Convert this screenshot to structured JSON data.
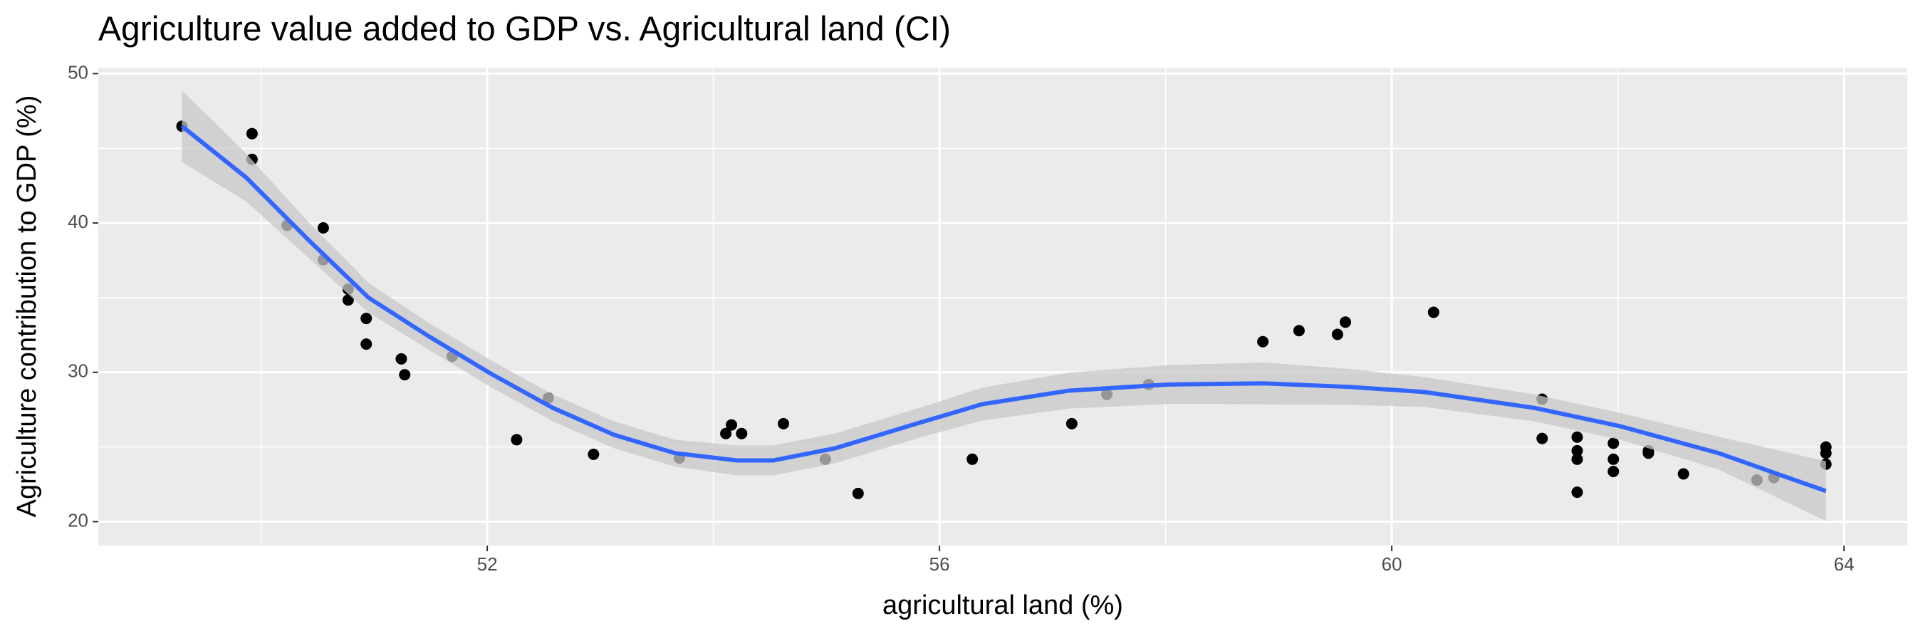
{
  "chart_data": {
    "type": "scatter",
    "title": "Agriculture value added to GDP vs. Agricultural land (CI)",
    "x_label": "agricultural land (%)",
    "y_label": "Agriculture contribution to GDP (%)",
    "x": [
      49.3,
      49.92,
      49.92,
      50.23,
      50.55,
      50.55,
      50.77,
      50.77,
      50.93,
      50.93,
      51.24,
      51.27,
      51.69,
      52.26,
      52.54,
      52.94,
      53.7,
      54.11,
      54.16,
      54.25,
      54.62,
      54.99,
      55.28,
      56.29,
      57.17,
      57.48,
      57.85,
      58.86,
      59.18,
      59.52,
      59.59,
      60.37,
      61.33,
      61.33,
      61.64,
      61.64,
      61.64,
      61.64,
      61.96,
      61.96,
      61.96,
      62.27,
      62.27,
      62.58,
      63.23,
      63.38,
      63.84,
      63.84,
      63.84
    ],
    "values": [
      46.48,
      45.98,
      44.26,
      39.84,
      39.67,
      37.54,
      35.57,
      34.84,
      33.61,
      31.89,
      30.9,
      29.84,
      31.07,
      25.49,
      28.28,
      24.51,
      24.26,
      25.9,
      26.48,
      25.9,
      26.56,
      24.18,
      21.89,
      24.18,
      26.56,
      28.52,
      29.18,
      32.05,
      32.79,
      32.54,
      33.36,
      34.02,
      28.2,
      25.57,
      25.66,
      24.75,
      24.18,
      21.97,
      25.25,
      24.18,
      23.36,
      24.75,
      24.59,
      23.2,
      22.79,
      22.95,
      25.0,
      24.59,
      23.85
    ],
    "color": "#000000",
    "smooth": {
      "x": [
        49.3,
        49.87,
        50.41,
        50.95,
        51.49,
        52.03,
        52.58,
        53.12,
        53.66,
        54.21,
        54.53,
        55.08,
        55.83,
        56.38,
        57.14,
        58.01,
        58.87,
        59.63,
        60.28,
        61.26,
        62.02,
        62.89,
        63.84
      ],
      "fit": [
        46.48,
        43.03,
        38.93,
        35.0,
        32.38,
        29.92,
        27.62,
        25.82,
        24.59,
        24.1,
        24.1,
        24.92,
        26.64,
        27.87,
        28.77,
        29.18,
        29.26,
        29.02,
        28.69,
        27.62,
        26.39,
        24.59,
        22.05
      ],
      "lower": [
        44.08,
        41.43,
        37.73,
        34.0,
        31.48,
        29.02,
        26.72,
        24.92,
        23.69,
        23.1,
        23.1,
        23.92,
        25.64,
        26.77,
        27.57,
        27.88,
        27.86,
        27.82,
        27.69,
        26.72,
        25.49,
        23.49,
        20.05
      ],
      "upper": [
        48.88,
        44.63,
        40.13,
        36.0,
        33.28,
        30.82,
        28.52,
        26.72,
        25.49,
        25.1,
        25.1,
        25.92,
        27.64,
        28.97,
        29.97,
        30.48,
        30.66,
        30.22,
        29.69,
        28.52,
        27.29,
        25.69,
        24.05
      ],
      "color": "#3366ff",
      "band_color": "#c8c8c8"
    },
    "xlim": [
      48.56,
      64.56
    ],
    "ylim": [
      18.4,
      50.4
    ],
    "xticks": [
      52,
      56,
      60,
      64
    ],
    "yticks": [
      20,
      30,
      40,
      50
    ],
    "x_minor_gridlines": [
      50,
      54,
      58,
      62
    ],
    "y_minor_gridlines": [
      25,
      35,
      45
    ],
    "grid": true
  }
}
